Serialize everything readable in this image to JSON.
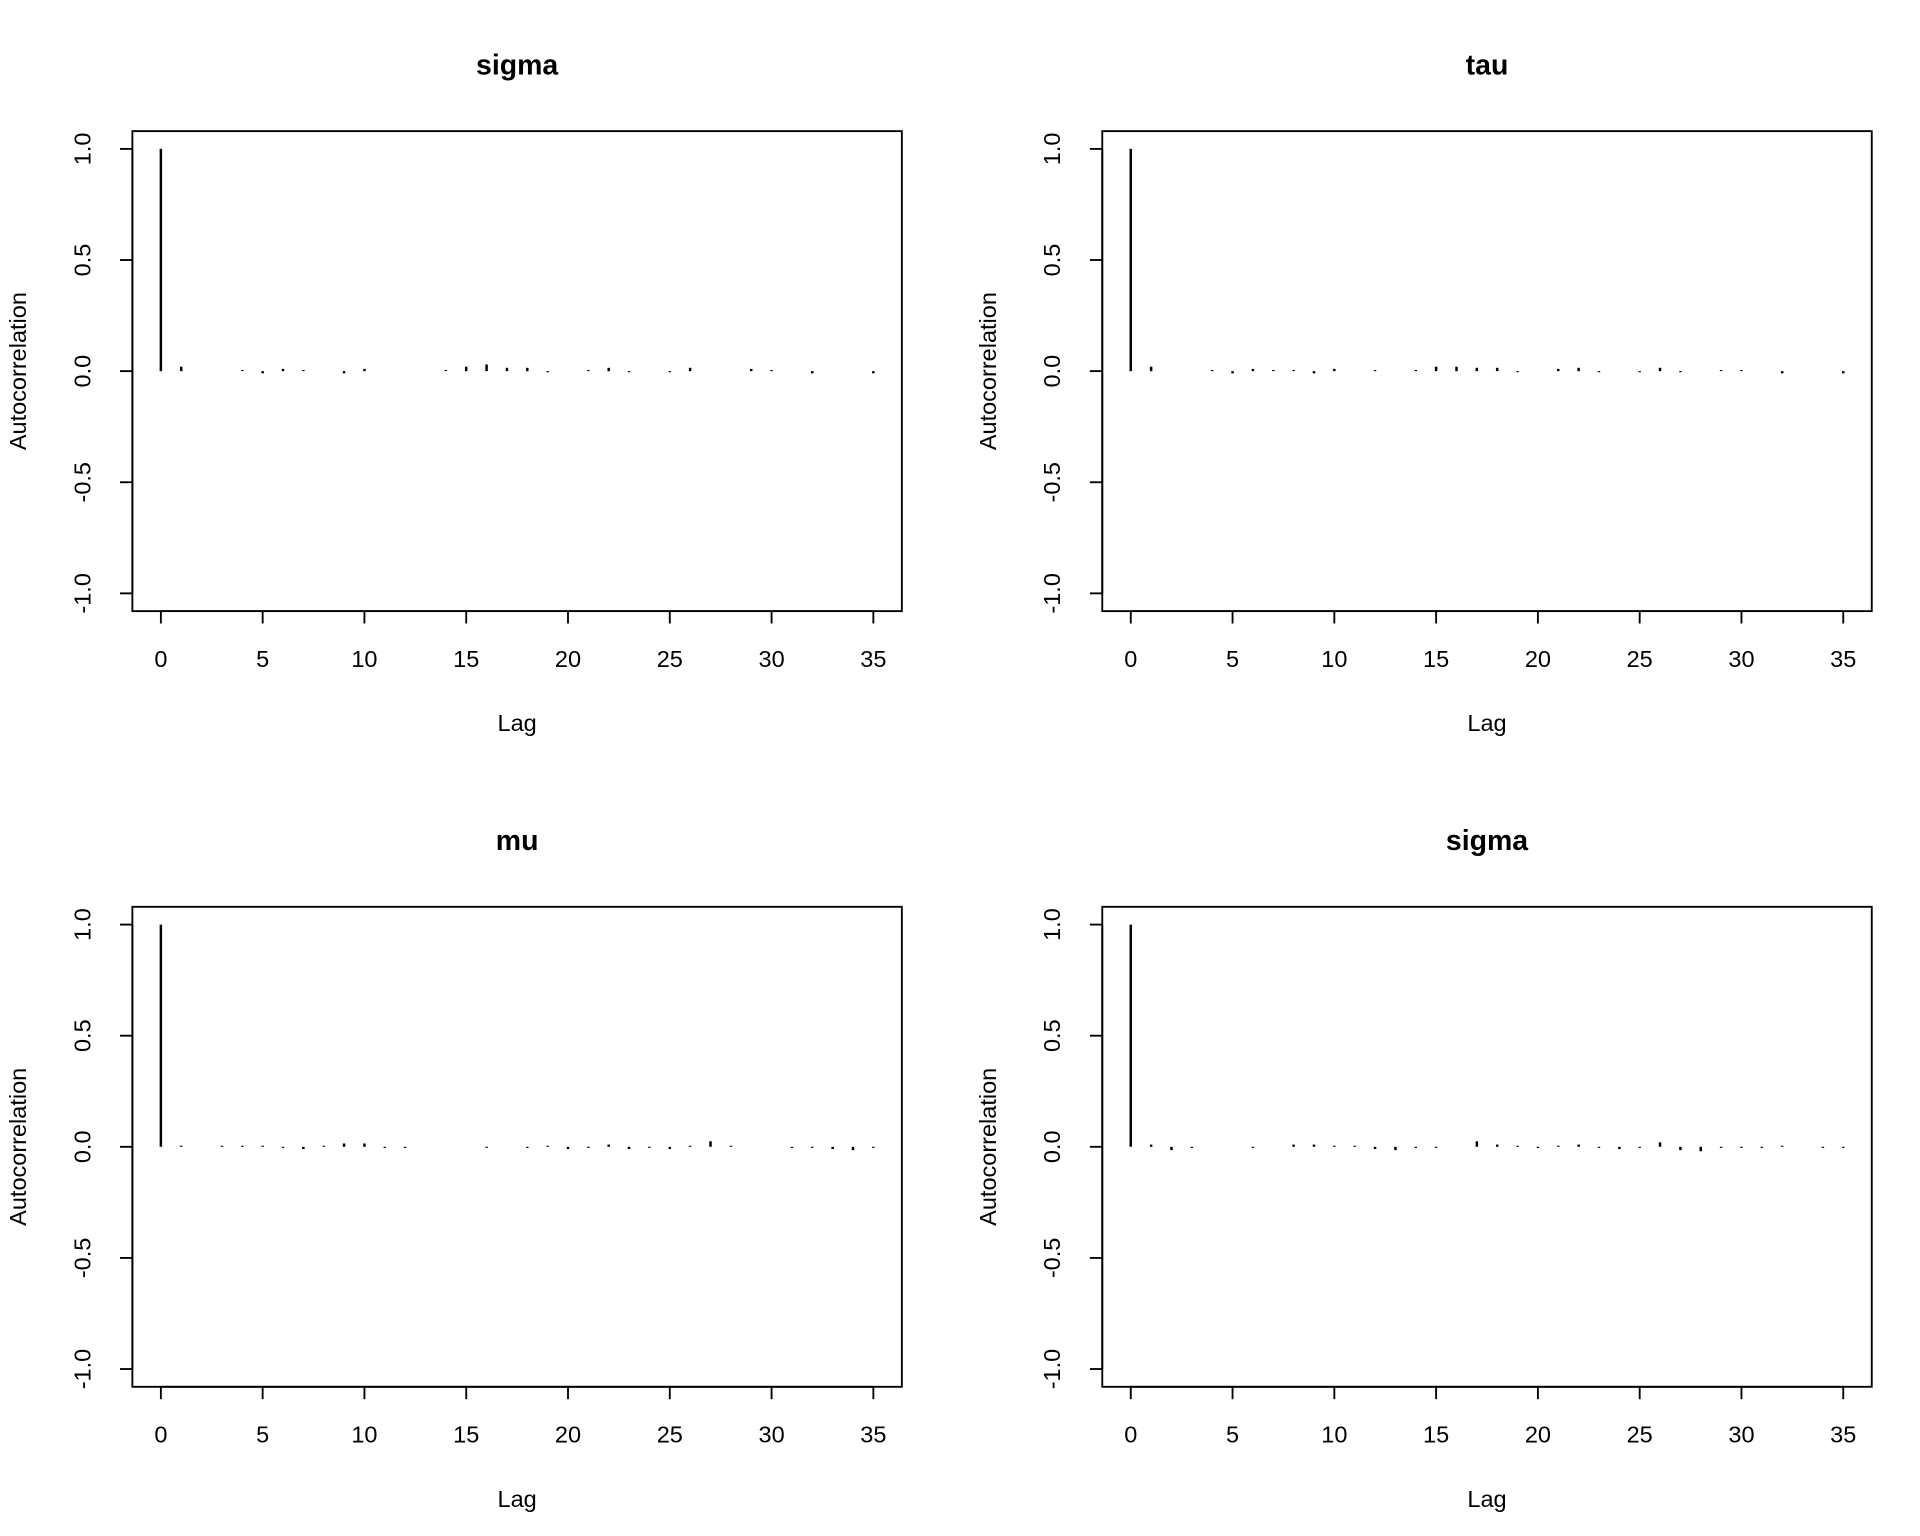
{
  "chart_data": [
    {
      "type": "bar",
      "title": "sigma",
      "xlabel": "Lag",
      "ylabel": "Autocorrelation",
      "color": "#000000",
      "x": [
        0,
        1,
        2,
        3,
        4,
        5,
        6,
        7,
        8,
        9,
        10,
        11,
        12,
        13,
        14,
        15,
        16,
        17,
        18,
        19,
        20,
        21,
        22,
        23,
        24,
        25,
        26,
        27,
        28,
        29,
        30,
        31,
        32,
        33,
        34,
        35
      ],
      "values": [
        1,
        0.02,
        0,
        0,
        0.005,
        -0.01,
        0.01,
        0.005,
        0,
        -0.01,
        0.01,
        0,
        0,
        0,
        0.005,
        0.02,
        0.03,
        0.015,
        0.015,
        -0.005,
        0,
        0.005,
        0.015,
        -0.005,
        0,
        -0.005,
        0.015,
        0,
        0,
        0.01,
        0.005,
        0,
        -0.01,
        0,
        0,
        -0.01
      ],
      "xlim": [
        -1.4,
        36.4
      ],
      "ylim": [
        -1.08,
        1.08
      ],
      "xticks": [
        0,
        5,
        10,
        15,
        20,
        25,
        30,
        35
      ],
      "yticks": [
        {
          "value": -1,
          "label": "-1.0"
        },
        -0.5,
        {
          "value": 0,
          "label": "0.0"
        },
        0.5,
        {
          "value": 1,
          "label": "1.0"
        }
      ]
    },
    {
      "type": "bar",
      "title": "tau",
      "xlabel": "Lag",
      "ylabel": "Autocorrelation",
      "color": "#000000",
      "x": [
        0,
        1,
        2,
        3,
        4,
        5,
        6,
        7,
        8,
        9,
        10,
        11,
        12,
        13,
        14,
        15,
        16,
        17,
        18,
        19,
        20,
        21,
        22,
        23,
        24,
        25,
        26,
        27,
        28,
        29,
        30,
        31,
        32,
        33,
        34,
        35
      ],
      "values": [
        1,
        0.02,
        0,
        0,
        0.005,
        -0.01,
        0.01,
        0.005,
        0.005,
        -0.01,
        0.01,
        0,
        0.005,
        0,
        0.005,
        0.02,
        0.02,
        0.015,
        0.015,
        -0.005,
        0,
        0.01,
        0.015,
        -0.005,
        0,
        -0.005,
        0.015,
        -0.005,
        0,
        0.005,
        0.005,
        0,
        -0.01,
        0,
        0,
        -0.01
      ],
      "xlim": [
        -1.4,
        36.4
      ],
      "ylim": [
        -1.08,
        1.08
      ],
      "xticks": [
        0,
        5,
        10,
        15,
        20,
        25,
        30,
        35
      ],
      "yticks": [
        {
          "value": -1,
          "label": "-1.0"
        },
        -0.5,
        {
          "value": 0,
          "label": "0.0"
        },
        0.5,
        {
          "value": 1,
          "label": "1.0"
        }
      ]
    },
    {
      "type": "bar",
      "title": "mu",
      "xlabel": "Lag",
      "ylabel": "Autocorrelation",
      "color": "#000000",
      "x": [
        0,
        1,
        2,
        3,
        4,
        5,
        6,
        7,
        8,
        9,
        10,
        11,
        12,
        13,
        14,
        15,
        16,
        17,
        18,
        19,
        20,
        21,
        22,
        23,
        24,
        25,
        26,
        27,
        28,
        29,
        30,
        31,
        32,
        33,
        34,
        35
      ],
      "values": [
        1,
        0.005,
        0,
        0.005,
        0.005,
        0.005,
        -0.005,
        -0.01,
        0.005,
        0.015,
        0.015,
        -0.005,
        -0.005,
        0,
        0,
        0,
        -0.005,
        0,
        -0.005,
        0.005,
        -0.01,
        -0.005,
        0.01,
        -0.01,
        -0.005,
        -0.01,
        0.005,
        0.025,
        0.005,
        0,
        0,
        -0.005,
        -0.005,
        -0.01,
        -0.015,
        -0.005
      ],
      "xlim": [
        -1.4,
        36.4
      ],
      "ylim": [
        -1.08,
        1.08
      ],
      "xticks": [
        0,
        5,
        10,
        15,
        20,
        25,
        30,
        35
      ],
      "yticks": [
        {
          "value": -1,
          "label": "-1.0"
        },
        -0.5,
        {
          "value": 0,
          "label": "0.0"
        },
        0.5,
        {
          "value": 1,
          "label": "1.0"
        }
      ]
    },
    {
      "type": "bar",
      "title": "sigma",
      "xlabel": "Lag",
      "ylabel": "Autocorrelation",
      "color": "#000000",
      "x": [
        0,
        1,
        2,
        3,
        4,
        5,
        6,
        7,
        8,
        9,
        10,
        11,
        12,
        13,
        14,
        15,
        16,
        17,
        18,
        19,
        20,
        21,
        22,
        23,
        24,
        25,
        26,
        27,
        28,
        29,
        30,
        31,
        32,
        33,
        34,
        35
      ],
      "values": [
        1,
        0.01,
        -0.015,
        -0.005,
        0,
        0,
        -0.005,
        0,
        0.01,
        0.01,
        0.005,
        0.005,
        -0.01,
        -0.015,
        -0.005,
        -0.005,
        0,
        0.025,
        0.01,
        0.005,
        -0.005,
        0.005,
        0.01,
        -0.005,
        -0.01,
        -0.005,
        0.02,
        -0.015,
        -0.02,
        -0.005,
        -0.005,
        -0.005,
        0.005,
        0,
        -0.005,
        -0.005
      ],
      "xlim": [
        -1.4,
        36.4
      ],
      "ylim": [
        -1.08,
        1.08
      ],
      "xticks": [
        0,
        5,
        10,
        15,
        20,
        25,
        30,
        35
      ],
      "yticks": [
        {
          "value": -1,
          "label": "-1.0"
        },
        -0.5,
        {
          "value": 0,
          "label": "0.0"
        },
        0.5,
        {
          "value": 1,
          "label": "1.0"
        }
      ]
    }
  ]
}
